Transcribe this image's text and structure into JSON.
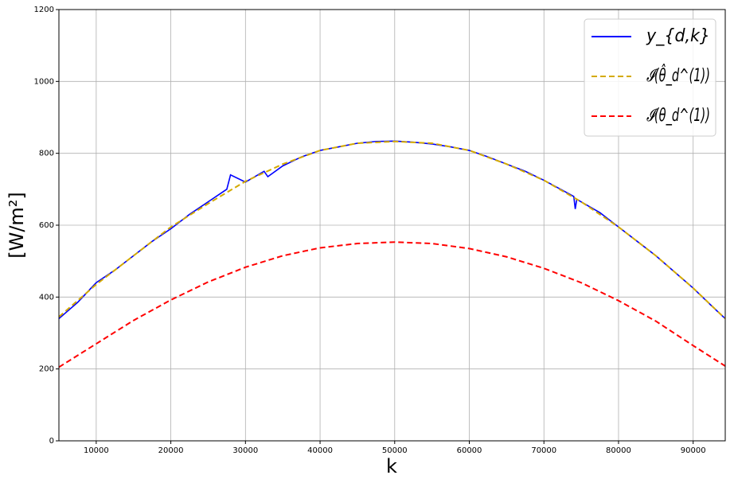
{
  "chart_data": {
    "type": "line",
    "xlabel": "k",
    "ylabel": "[W/m²]",
    "xlim": [
      5000,
      94300
    ],
    "ylim": [
      0,
      1200
    ],
    "xticks": [
      10000,
      20000,
      30000,
      40000,
      50000,
      60000,
      70000,
      80000,
      90000
    ],
    "yticks": [
      0,
      200,
      400,
      600,
      800,
      1000,
      1200
    ],
    "grid": true,
    "legend": "upper right",
    "series": [
      {
        "name": "y_{d,k}",
        "color": "#0000ff",
        "linestyle": "solid",
        "x": [
          5000,
          7500,
          10000,
          12500,
          15000,
          17500,
          20000,
          22500,
          25000,
          27500,
          28000,
          30000,
          32500,
          33000,
          35000,
          37500,
          40000,
          42500,
          45000,
          47500,
          50000,
          52500,
          55000,
          57500,
          60000,
          62500,
          65000,
          67500,
          70000,
          72500,
          74000,
          74200,
          74400,
          77500,
          80000,
          82500,
          85000,
          87500,
          90000,
          92500,
          94300
        ],
        "values": [
          340,
          385,
          440,
          475,
          515,
          555,
          590,
          630,
          665,
          700,
          740,
          720,
          750,
          735,
          765,
          790,
          808,
          818,
          828,
          833,
          834,
          831,
          826,
          818,
          808,
          790,
          770,
          750,
          725,
          697,
          680,
          645,
          672,
          635,
          595,
          555,
          515,
          470,
          425,
          375,
          340
        ]
      },
      {
        "name": "𝓘(θ̂_d^(1))",
        "color": "#d4aa00",
        "linestyle": "dashed",
        "x": [
          5000,
          10000,
          15000,
          20000,
          25000,
          30000,
          35000,
          40000,
          45000,
          50000,
          55000,
          60000,
          65000,
          70000,
          75000,
          80000,
          85000,
          90000,
          94300
        ],
        "values": [
          345,
          435,
          515,
          595,
          660,
          722,
          770,
          808,
          828,
          833,
          828,
          808,
          770,
          725,
          665,
          595,
          515,
          425,
          340
        ]
      },
      {
        "name": "𝓘(θ_d^(1))",
        "color": "#ff0000",
        "linestyle": "dashed",
        "x": [
          5000,
          10000,
          15000,
          20000,
          25000,
          30000,
          35000,
          40000,
          45000,
          50000,
          55000,
          60000,
          65000,
          70000,
          75000,
          80000,
          85000,
          90000,
          94300
        ],
        "values": [
          205,
          270,
          335,
          392,
          442,
          483,
          515,
          537,
          549,
          553,
          549,
          535,
          512,
          480,
          440,
          390,
          333,
          265,
          208
        ]
      }
    ]
  }
}
